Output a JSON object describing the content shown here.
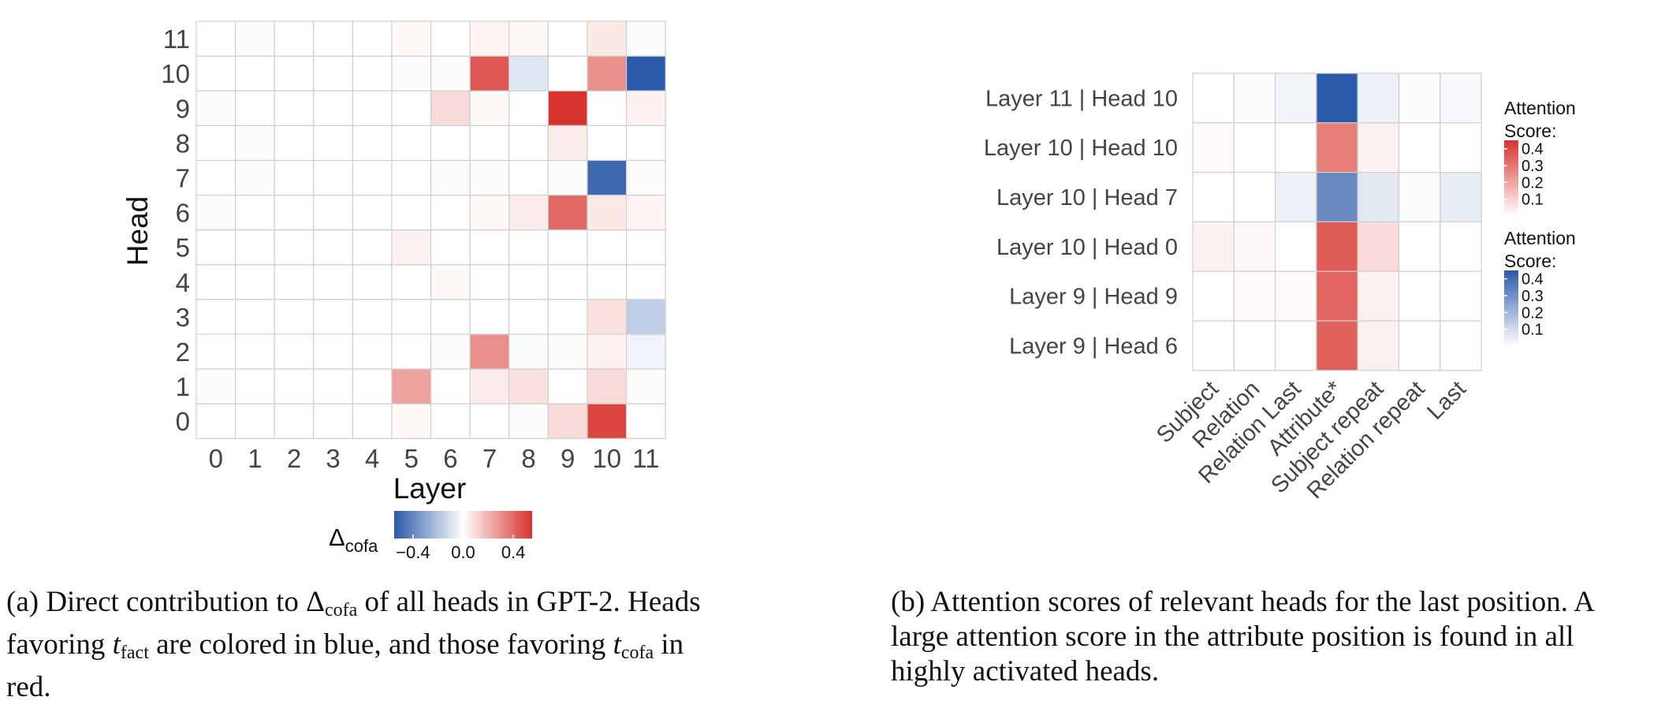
{
  "chart_data": [
    {
      "type": "heatmap",
      "xlabel": "Layer",
      "ylabel": "Head",
      "x": [
        "0",
        "1",
        "2",
        "3",
        "4",
        "5",
        "6",
        "7",
        "8",
        "9",
        "10",
        "11"
      ],
      "y": [
        "0",
        "1",
        "2",
        "3",
        "4",
        "5",
        "6",
        "7",
        "8",
        "9",
        "10",
        "11"
      ],
      "values_by_head": [
        [
          0.0,
          0.0,
          0.0,
          0.0,
          0.0,
          0.02,
          0.0,
          0.0,
          -0.01,
          0.1,
          0.5,
          0.0
        ],
        [
          0.01,
          0.0,
          0.0,
          0.0,
          0.0,
          0.25,
          0.0,
          0.05,
          0.08,
          0.0,
          0.1,
          0.01
        ],
        [
          0.0,
          0.0,
          0.0,
          0.0,
          0.0,
          0.0,
          0.01,
          0.3,
          -0.01,
          0.01,
          0.04,
          -0.04
        ],
        [
          0.0,
          0.0,
          0.0,
          0.0,
          0.0,
          0.0,
          0.0,
          0.0,
          0.0,
          0.0,
          0.08,
          -0.16
        ],
        [
          0.0,
          0.0,
          0.0,
          0.0,
          0.0,
          0.0,
          0.02,
          0.0,
          0.0,
          0.0,
          0.0,
          0.0
        ],
        [
          0.0,
          0.0,
          0.0,
          0.0,
          0.0,
          0.04,
          0.0,
          0.0,
          0.0,
          0.0,
          0.0,
          0.0
        ],
        [
          -0.01,
          0.0,
          0.0,
          0.0,
          0.0,
          0.0,
          0.0,
          0.02,
          0.05,
          0.4,
          0.06,
          0.03
        ],
        [
          0.0,
          -0.01,
          0.0,
          0.0,
          0.0,
          0.0,
          -0.01,
          0.01,
          0.0,
          -0.01,
          -0.5,
          0.01
        ],
        [
          0.0,
          0.01,
          0.0,
          0.0,
          0.0,
          0.0,
          0.0,
          0.0,
          0.0,
          0.05,
          0.0,
          0.0
        ],
        [
          0.01,
          0.0,
          0.0,
          0.0,
          0.0,
          0.0,
          0.1,
          0.02,
          0.0,
          0.55,
          0.0,
          0.04
        ],
        [
          0.0,
          0.0,
          0.0,
          0.0,
          0.0,
          -0.01,
          0.01,
          0.45,
          -0.08,
          0.0,
          0.3,
          -0.55
        ],
        [
          0.0,
          0.01,
          0.0,
          0.0,
          0.0,
          0.02,
          0.0,
          0.03,
          0.02,
          0.0,
          0.06,
          -0.01
        ]
      ],
      "zlim": [
        -0.55,
        0.55
      ],
      "colorbar_label": "Δcofa",
      "colorbar_ticks": [
        "−0.4",
        "0.0",
        "0.4"
      ],
      "colors": {
        "negative": "#2b5aa8",
        "zero": "#ffffff",
        "positive": "#d7322c"
      }
    },
    {
      "type": "heatmap",
      "x": [
        "Subject",
        "Relation",
        "Relation Last",
        "Attribute*",
        "Subject repeat",
        "Relation repeat",
        "Last"
      ],
      "y": [
        "Layer 11 | Head 10",
        "Layer 10 | Head 10",
        "Layer 10 | Head 7",
        "Layer 10 | Head 0",
        "Layer 9 | Head 9",
        "Layer 9 | Head 6"
      ],
      "rows": [
        {
          "sign": "negative",
          "values": [
            0.0,
            0.01,
            0.03,
            0.48,
            0.04,
            0.01,
            0.02
          ]
        },
        {
          "sign": "positive",
          "values": [
            0.01,
            0.0,
            0.0,
            0.28,
            0.03,
            0.0,
            0.0
          ]
        },
        {
          "sign": "negative",
          "values": [
            0.0,
            0.0,
            0.04,
            0.32,
            0.06,
            0.01,
            0.05
          ]
        },
        {
          "sign": "positive",
          "values": [
            0.03,
            0.02,
            0.0,
            0.36,
            0.08,
            0.0,
            0.0
          ]
        },
        {
          "sign": "positive",
          "values": [
            0.0,
            0.01,
            0.01,
            0.34,
            0.03,
            0.0,
            0.0
          ]
        },
        {
          "sign": "positive",
          "values": [
            0.0,
            0.0,
            0.0,
            0.35,
            0.03,
            0.0,
            0.0
          ]
        }
      ],
      "legends": [
        {
          "title_line1": "Attention",
          "title_line2": "Score:",
          "color": "#d7322c",
          "ticks": [
            "0.4",
            "0.3",
            "0.2",
            "0.1"
          ]
        },
        {
          "title_line1": "Attention",
          "title_line2": "Score:",
          "color": "#2b5aa8",
          "ticks": [
            "0.4",
            "0.3",
            "0.2",
            "0.1"
          ]
        }
      ],
      "zlim": [
        0,
        0.45
      ]
    }
  ],
  "captions": {
    "a": {
      "tag": "(a)",
      "l1_before": "Direct contribution to ",
      "delta": "Δ",
      "cofa": "cofa",
      "l1_after": " of all heads in GPT-2. Heads",
      "l2_before": "favoring ",
      "t": "t",
      "fact": "fact",
      "l2_mid": " are colored in blue, and those favoring ",
      "l2_end": " in",
      "l3": "red."
    },
    "b": {
      "l1": "(b) Attention scores of relevant heads for the last position. A",
      "l2": "large attention score in the attribute position is found in all",
      "l3": "highly activated heads."
    }
  }
}
